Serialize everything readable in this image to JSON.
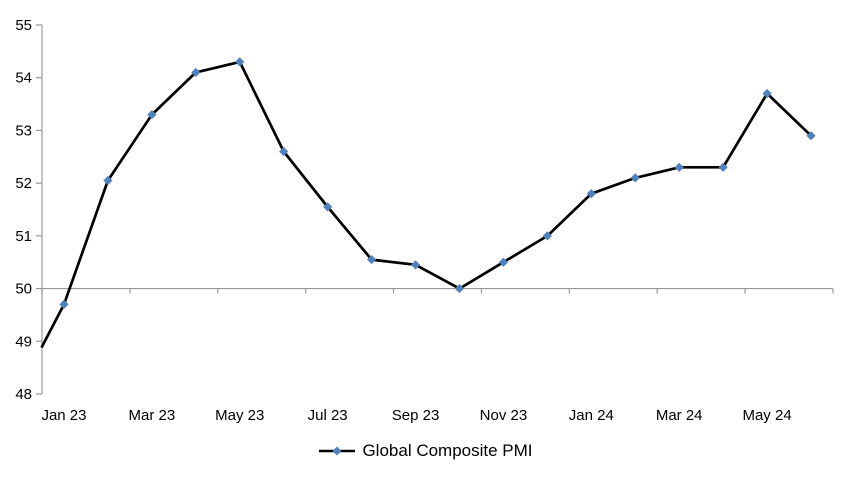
{
  "chart_data": {
    "type": "line",
    "title": "",
    "legend": {
      "label": "Global Composite PMI",
      "position": "bottom-center"
    },
    "y_axis": {
      "min": 48,
      "max": 55,
      "step": 1,
      "tick_labels": [
        "55",
        "54",
        "53",
        "52",
        "51",
        "50",
        "49",
        "48"
      ]
    },
    "x_axis": {
      "tick_labels": [
        "Jan 23",
        "Mar 23",
        "May 23",
        "Jul 23",
        "Sep 23",
        "Nov 23",
        "Jan 24",
        "Mar 24",
        "May 24"
      ],
      "months_per_tick": 2,
      "axis_line_at_value": 50
    },
    "series": [
      {
        "name": "Global Composite PMI",
        "line_color": "#000000",
        "marker_color": "#4F81BD",
        "marker": "diamond",
        "lead_in_edge_value": 48.9,
        "x": [
          "Jan 23",
          "Feb 23",
          "Mar 23",
          "Apr 23",
          "May 23",
          "Jun 23",
          "Jul 23",
          "Aug 23",
          "Sep 23",
          "Oct 23",
          "Nov 23",
          "Dec 23",
          "Jan 24",
          "Feb 24",
          "Mar 24",
          "Apr 24",
          "May 24",
          "Jun 24"
        ],
        "values": [
          49.7,
          52.05,
          53.3,
          54.1,
          54.3,
          52.6,
          51.55,
          50.55,
          50.45,
          50.0,
          50.5,
          51.0,
          51.8,
          52.1,
          52.3,
          52.3,
          53.7,
          52.9
        ]
      }
    ],
    "grid": {
      "horizontal_gridlines": false,
      "category_axis_crosses_at": 50
    },
    "axis_color": "#999999",
    "text_color": "#000000",
    "background": "#ffffff"
  }
}
